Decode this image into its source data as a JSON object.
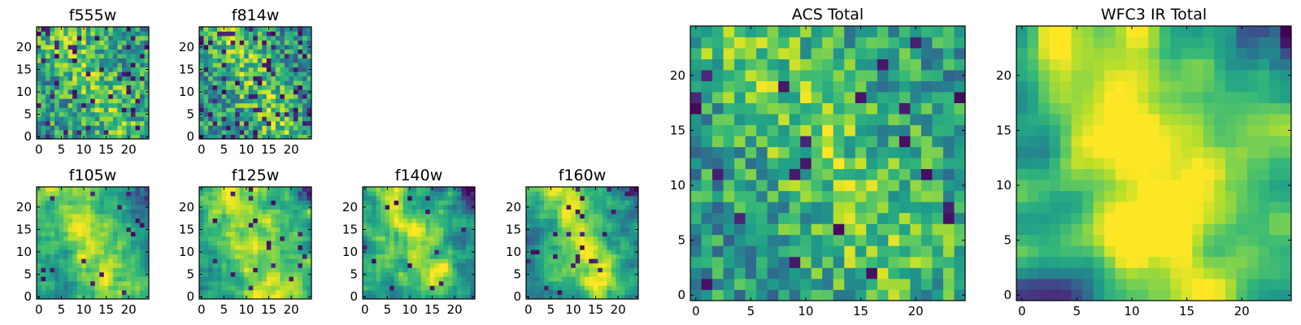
{
  "chart_data": {
    "type": "heatmap",
    "colormap": "viridis",
    "grid_size": 25,
    "value_range": [
      0,
      1
    ],
    "panels": [
      {
        "id": "f555w",
        "title": "f555w",
        "xticks": [
          0,
          5,
          10,
          15,
          20
        ],
        "yticks": [
          0,
          5,
          10,
          15,
          20
        ],
        "xlim": [
          -0.5,
          24.5
        ],
        "ylim": [
          -0.5,
          24.5
        ],
        "structure": {
          "ridge_from": [
            5,
            24
          ],
          "ridge_to": [
            18,
            3
          ],
          "ridge_strength": 0.2,
          "ridge_width": 4,
          "blur": 0,
          "noise": 0.55,
          "mean": 0.55,
          "dark_fraction": 0.08,
          "dark_corner": "none",
          "seed": 11
        }
      },
      {
        "id": "f814w",
        "title": "f814w",
        "xticks": [
          0,
          5,
          10,
          15,
          20
        ],
        "yticks": [
          0,
          5,
          10,
          15,
          20
        ],
        "xlim": [
          -0.5,
          24.5
        ],
        "ylim": [
          -0.5,
          24.5
        ],
        "structure": {
          "ridge_from": [
            6,
            24
          ],
          "ridge_to": [
            17,
            3
          ],
          "ridge_strength": 0.25,
          "ridge_width": 4,
          "blur": 0,
          "noise": 0.55,
          "mean": 0.52,
          "dark_fraction": 0.1,
          "dark_corner": "none",
          "seed": 23
        }
      },
      {
        "id": "f105w",
        "title": "f105w",
        "xticks": [
          0,
          5,
          10,
          15,
          20
        ],
        "yticks": [
          0,
          5,
          10,
          15,
          20
        ],
        "xlim": [
          -0.5,
          24.5
        ],
        "ylim": [
          -0.5,
          24.5
        ],
        "structure": {
          "ridge_from": [
            7,
            24
          ],
          "ridge_to": [
            16,
            2
          ],
          "ridge_strength": 0.35,
          "ridge_width": 4,
          "blur": 1,
          "noise": 0.4,
          "mean": 0.55,
          "dark_fraction": 0.03,
          "dark_corner": "top-right",
          "seed": 37
        }
      },
      {
        "id": "f125w",
        "title": "f125w",
        "xticks": [
          0,
          5,
          10,
          15,
          20
        ],
        "yticks": [
          0,
          5,
          10,
          15,
          20
        ],
        "xlim": [
          -0.5,
          24.5
        ],
        "ylim": [
          -0.5,
          24.5
        ],
        "structure": {
          "ridge_from": [
            7,
            24
          ],
          "ridge_to": [
            16,
            2
          ],
          "ridge_strength": 0.3,
          "ridge_width": 5,
          "blur": 1,
          "noise": 0.4,
          "mean": 0.58,
          "dark_fraction": 0.03,
          "dark_corner": "top-right",
          "seed": 41
        }
      },
      {
        "id": "f140w",
        "title": "f140w",
        "xticks": [
          0,
          5,
          10,
          15,
          20
        ],
        "yticks": [
          0,
          5,
          10,
          15,
          20
        ],
        "xlim": [
          -0.5,
          24.5
        ],
        "ylim": [
          -0.5,
          24.5
        ],
        "structure": {
          "ridge_from": [
            7,
            24
          ],
          "ridge_to": [
            16,
            2
          ],
          "ridge_strength": 0.3,
          "ridge_width": 4,
          "blur": 1,
          "noise": 0.45,
          "mean": 0.55,
          "dark_fraction": 0.03,
          "dark_corner": "top-right",
          "seed": 53
        }
      },
      {
        "id": "f160w",
        "title": "f160w",
        "xticks": [
          0,
          5,
          10,
          15,
          20
        ],
        "yticks": [
          0,
          5,
          10,
          15,
          20
        ],
        "xlim": [
          -0.5,
          24.5
        ],
        "ylim": [
          -0.5,
          24.5
        ],
        "structure": {
          "ridge_from": [
            7,
            24
          ],
          "ridge_to": [
            16,
            2
          ],
          "ridge_strength": 0.4,
          "ridge_width": 4,
          "blur": 1,
          "noise": 0.4,
          "mean": 0.52,
          "dark_fraction": 0.03,
          "dark_corner": "top-right",
          "seed": 67
        }
      },
      {
        "id": "acs_total",
        "title": "ACS Total",
        "xticks": [
          0,
          5,
          10,
          15,
          20
        ],
        "yticks": [
          0,
          5,
          10,
          15,
          20
        ],
        "xlim": [
          -0.5,
          24.5
        ],
        "ylim": [
          -0.5,
          24.5
        ],
        "structure": {
          "ridge_from": [
            5,
            24
          ],
          "ridge_to": [
            18,
            4
          ],
          "ridge_strength": 0.22,
          "ridge_width": 4,
          "blur": 0,
          "noise": 0.5,
          "mean": 0.55,
          "dark_fraction": 0.05,
          "dark_corner": "none",
          "seed": 79
        }
      },
      {
        "id": "wfc3_ir_total",
        "title": "WFC3 IR Total",
        "xticks": [
          0,
          5,
          10,
          15,
          20
        ],
        "yticks": [
          0,
          5,
          10,
          15,
          20
        ],
        "xlim": [
          -0.5,
          24.5
        ],
        "ylim": [
          -0.5,
          24.5
        ],
        "structure": {
          "ridge_from": [
            7,
            24
          ],
          "ridge_to": [
            15,
            2
          ],
          "ridge_strength": 0.45,
          "ridge_width": 5,
          "blur": 2,
          "noise": 0.3,
          "mean": 0.55,
          "dark_fraction": 0.0,
          "dark_corner": "top-right",
          "seed": 97
        }
      }
    ]
  }
}
